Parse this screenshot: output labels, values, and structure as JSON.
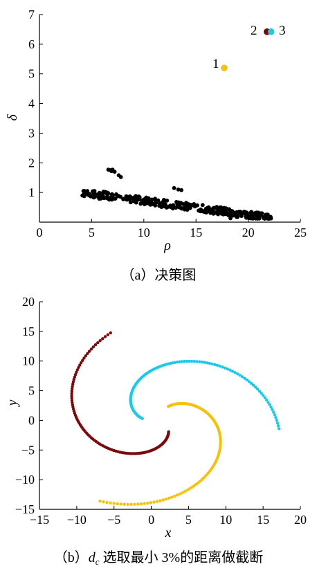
{
  "chart_data": [
    {
      "type": "scatter",
      "caption": "（a）决策图",
      "xlabel": "ρ",
      "ylabel": "δ",
      "xlim": [
        0,
        25
      ],
      "ylim": [
        0,
        7
      ],
      "xticks": [
        "0",
        "5",
        "10",
        "15",
        "20",
        "25"
      ],
      "yticks": [
        "1",
        "2",
        "3",
        "4",
        "5",
        "6",
        "7"
      ],
      "grid": false,
      "cluster_centers": [
        {
          "label": "1",
          "x": 17.7,
          "y": 5.2,
          "color": "#F4C20D"
        },
        {
          "label": "2",
          "x": 21.8,
          "y": 6.42,
          "color": "#7A0A0A"
        },
        {
          "label": "3",
          "x": 22.2,
          "y": 6.42,
          "color": "#1EC8EA"
        }
      ],
      "other_points_color": "#000000",
      "other_points_summary": {
        "main_band": {
          "x_range": [
            4.0,
            22.3
          ],
          "y_range": [
            0.12,
            1.05
          ]
        },
        "extra": [
          [
            6.6,
            1.77
          ],
          [
            6.8,
            1.75
          ],
          [
            7.0,
            1.77
          ],
          [
            7.2,
            1.7
          ],
          [
            6.9,
            1.72
          ],
          [
            7.6,
            1.58
          ],
          [
            7.8,
            1.52
          ],
          [
            12.9,
            1.15
          ],
          [
            13.3,
            1.1
          ],
          [
            13.6,
            1.08
          ],
          [
            16.1,
            0.48
          ],
          [
            19.1,
            0.35
          ],
          [
            18.3,
            0.13
          ],
          [
            19.8,
            0.16
          ]
        ]
      }
    },
    {
      "type": "scatter",
      "caption": "（b）d_c 选取最小 3%的距离做截断",
      "caption_parts": {
        "prefix": "（b）",
        "var": "d",
        "sub": "c",
        "suffix": " 选取最小 3%的距离做截断"
      },
      "xlabel": "x",
      "ylabel": "y",
      "xlim": [
        -15,
        20
      ],
      "ylim": [
        -15,
        20
      ],
      "xticks": [
        "−15",
        "−10",
        "−5",
        "0",
        "5",
        "10",
        "15",
        "20"
      ],
      "yticks": [
        "−15",
        "−10",
        "−5",
        "0",
        "5",
        "10",
        "15",
        "20"
      ],
      "grid": false,
      "series": [
        {
          "color": "#7A0A0A",
          "spiral": {
            "a0": 5.2,
            "a1": 2.0,
            "r0": 2.4,
            "r1": 16.0,
            "n": 110
          }
        },
        {
          "color": "#1EC8EA",
          "spiral": {
            "a0": 3.1,
            "a1": -0.1,
            "r0": 2.4,
            "r1": 16.0,
            "n": 110
          }
        },
        {
          "color": "#F4C20D",
          "spiral": {
            "a0": 1.1,
            "a1": -2.1,
            "r0": 2.4,
            "r1": 16.0,
            "n": 110
          }
        }
      ]
    }
  ]
}
